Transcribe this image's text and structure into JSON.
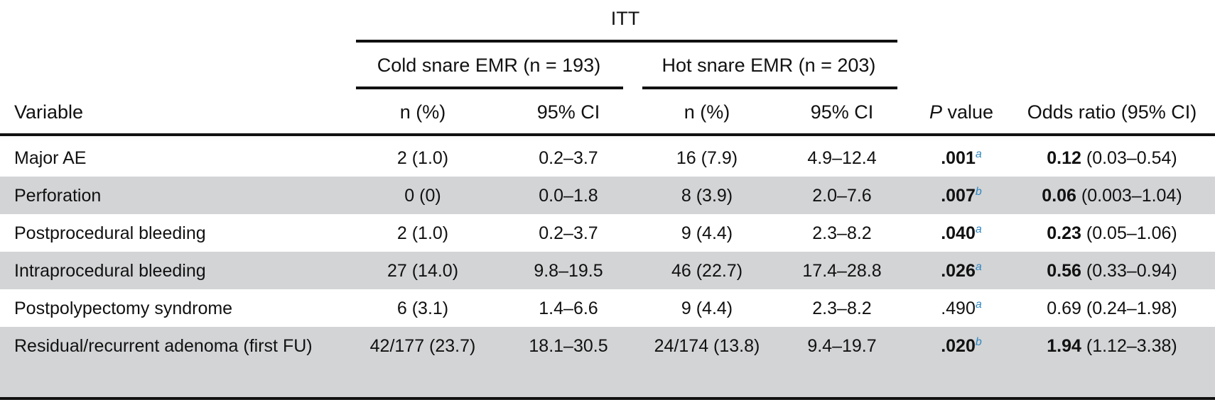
{
  "table": {
    "group_header": "ITT",
    "cold_header": "Cold snare EMR (n = 193)",
    "hot_header": "Hot snare EMR (n = 203)",
    "columns": {
      "variable": "Variable",
      "cold_n": "n (%)",
      "cold_ci": "95% CI",
      "hot_n": "n (%)",
      "hot_ci": "95% CI",
      "p_value_italic": "P",
      "p_value_rest": " value",
      "odds_ratio": "Odds ratio (95% CI)"
    },
    "rows": [
      {
        "variable": "Major AE",
        "cold_n": "2 (1.0)",
        "cold_ci": "0.2–3.7",
        "hot_n": "16 (7.9)",
        "hot_ci": "4.9–12.4",
        "p_value": ".001",
        "p_note": "a",
        "p_bold": true,
        "or_value": "0.12",
        "or_ci": "(0.03–0.54)",
        "or_bold": true,
        "shaded": false
      },
      {
        "variable": "Perforation",
        "cold_n": "0 (0)",
        "cold_ci": "0.0–1.8",
        "hot_n": "8 (3.9)",
        "hot_ci": "2.0–7.6",
        "p_value": ".007",
        "p_note": "b",
        "p_bold": true,
        "or_value": "0.06",
        "or_ci": "(0.003–1.04)",
        "or_bold": true,
        "shaded": true
      },
      {
        "variable": "Postprocedural bleeding",
        "cold_n": "2 (1.0)",
        "cold_ci": "0.2–3.7",
        "hot_n": "9 (4.4)",
        "hot_ci": "2.3–8.2",
        "p_value": ".040",
        "p_note": "a",
        "p_bold": true,
        "or_value": "0.23",
        "or_ci": "(0.05–1.06)",
        "or_bold": true,
        "shaded": false
      },
      {
        "variable": "Intraprocedural bleeding",
        "cold_n": "27 (14.0)",
        "cold_ci": "9.8–19.5",
        "hot_n": "46 (22.7)",
        "hot_ci": "17.4–28.8",
        "p_value": ".026",
        "p_note": "a",
        "p_bold": true,
        "or_value": "0.56",
        "or_ci": "(0.33–0.94)",
        "or_bold": true,
        "shaded": true
      },
      {
        "variable": "Postpolypectomy syndrome",
        "cold_n": "6 (3.1)",
        "cold_ci": "1.4–6.6",
        "hot_n": "9 (4.4)",
        "hot_ci": "2.3–8.2",
        "p_value": ".490",
        "p_note": "a",
        "p_bold": false,
        "or_value": "0.69",
        "or_ci": "(0.24–1.98)",
        "or_bold": false,
        "shaded": false
      },
      {
        "variable": "Residual/recurrent adenoma (first FU)",
        "cold_n": "42/177 (23.7)",
        "cold_ci": "18.1–30.5",
        "hot_n": "24/174 (13.8)",
        "hot_ci": "9.4–19.7",
        "p_value": ".020",
        "p_note": "b",
        "p_bold": true,
        "or_value": "1.94",
        "or_ci": "(1.12–3.38)",
        "or_bold": true,
        "shaded": true
      }
    ]
  },
  "colors": {
    "shade": "#d3d4d6",
    "rule": "#111111",
    "footnote_marker": "#2e86c1"
  }
}
